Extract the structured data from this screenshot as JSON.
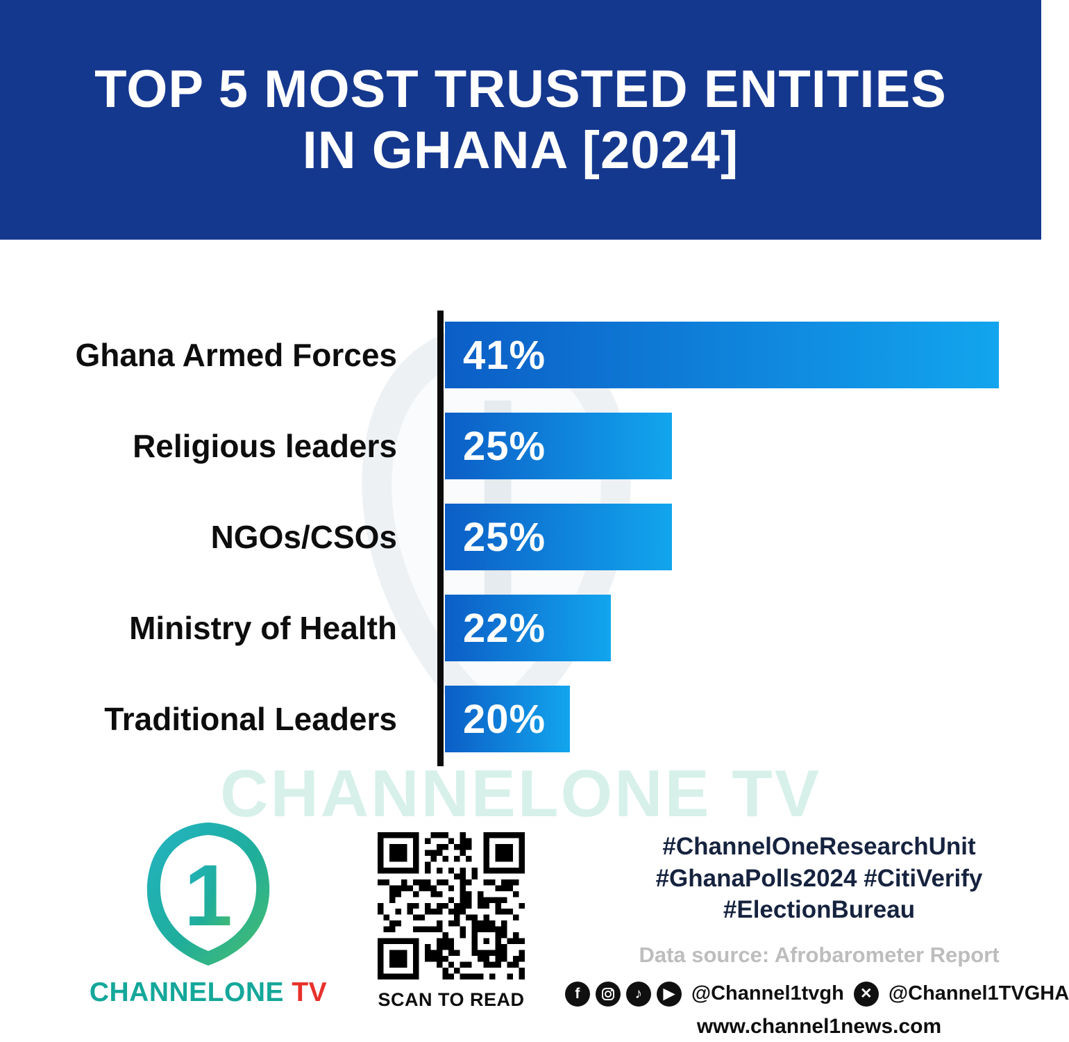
{
  "header": {
    "title_line1": "TOP 5 MOST TRUSTED ENTITIES",
    "title_line2": "IN GHANA [2024]"
  },
  "chart_data": {
    "type": "bar",
    "orientation": "horizontal",
    "title": "Top 5 Most Trusted Entities in Ghana [2024]",
    "categories": [
      "Ghana Armed Forces",
      "Religious leaders",
      "NGOs/CSOs",
      "Ministry of Health",
      "Traditional Leaders"
    ],
    "values": [
      41,
      25,
      25,
      22,
      20
    ],
    "value_labels": [
      "41%",
      "25%",
      "25%",
      "22%",
      "20%"
    ],
    "display_width_pct": [
      100,
      41,
      41,
      30,
      22.5
    ],
    "bar_gradient": [
      "#0c5ec6",
      "#12a5ee"
    ],
    "axis_color": "#0b0b0b",
    "grid": false,
    "legend": false
  },
  "watermark": {
    "text": "CHANNELONE TV"
  },
  "footer": {
    "brand": {
      "part1": "CHANNELONE",
      "part2": " TV",
      "logo_digit": "1"
    },
    "qr_caption": "SCAN TO READ",
    "hashtag_lines": [
      "#ChannelOneResearchUnit",
      "#GhanaPolls2024 #CitiVerify",
      "#ElectionBureau"
    ],
    "data_source": "Data source: Afrobarometer Report",
    "social": {
      "icons": [
        "facebook-icon",
        "instagram-icon",
        "tiktok-icon",
        "youtube-icon"
      ],
      "handle1": "@Channel1tvgh",
      "x_icon": "x-icon",
      "handle2": "@Channel1TVGHA"
    },
    "website": "www.channel1news.com"
  },
  "colors": {
    "header_bg": "#15388f",
    "bar_start": "#0c5ec6",
    "bar_end": "#12a5ee",
    "brand_teal": "#14a79a",
    "brand_red": "#e8302a"
  }
}
